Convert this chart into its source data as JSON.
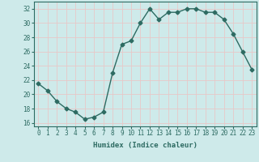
{
  "x": [
    0,
    1,
    2,
    3,
    4,
    5,
    6,
    7,
    8,
    9,
    10,
    11,
    12,
    13,
    14,
    15,
    16,
    17,
    18,
    19,
    20,
    21,
    22,
    23
  ],
  "y": [
    21.5,
    20.5,
    19.0,
    18.0,
    17.5,
    16.5,
    16.8,
    17.5,
    23.0,
    27.0,
    27.5,
    30.0,
    32.0,
    30.5,
    31.5,
    31.5,
    32.0,
    32.0,
    31.5,
    31.5,
    30.5,
    28.5,
    26.0,
    23.5
  ],
  "line_color": "#2d6b62",
  "marker": "D",
  "markersize": 2.5,
  "bg_color": "#ceeaea",
  "grid_color": "#e8c8c8",
  "xlabel": "Humidex (Indice chaleur)",
  "ylim": [
    15.5,
    33
  ],
  "xlim": [
    -0.5,
    23.5
  ],
  "yticks": [
    16,
    18,
    20,
    22,
    24,
    26,
    28,
    30,
    32
  ],
  "xticks": [
    0,
    1,
    2,
    3,
    4,
    5,
    6,
    7,
    8,
    9,
    10,
    11,
    12,
    13,
    14,
    15,
    16,
    17,
    18,
    19,
    20,
    21,
    22,
    23
  ],
  "tick_color": "#2d6b62",
  "label_fontsize": 6.5,
  "tick_fontsize": 5.5
}
